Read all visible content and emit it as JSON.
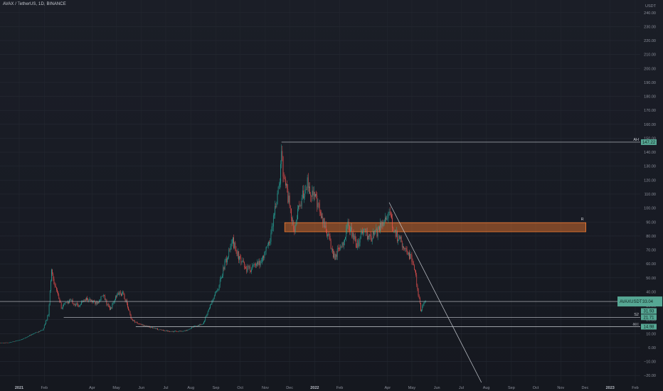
{
  "header": {
    "symbol_line": "AVAX / TetherUS, 1D, BINANCE"
  },
  "colors": {
    "up": "#26a69a",
    "down": "#ef5350",
    "line": "#c8ccd2",
    "zone_fill": "#f57c31",
    "tag_bg": "#56a794",
    "background": "#1b1e27"
  },
  "chart_data": {
    "type": "candlestick",
    "title": "AVAX / TetherUS, 1D, BINANCE",
    "y_unit": "USDT",
    "ylim": [
      -25,
      245
    ],
    "y_ticks": [
      -20,
      -10,
      0,
      10,
      20,
      30,
      40,
      50,
      60,
      70,
      80,
      90,
      100,
      110,
      120,
      130,
      140,
      150,
      160,
      170,
      180,
      190,
      200,
      210,
      220,
      230,
      240
    ],
    "x_range": [
      "2021-01-01",
      "2023-02-01"
    ],
    "x_ticks": [
      {
        "date": "2021-01-01",
        "label": "2021",
        "bold": true
      },
      {
        "date": "2021-02-01",
        "label": "Feb"
      },
      {
        "date": "2021-04-01",
        "label": "Apr"
      },
      {
        "date": "2021-05-01",
        "label": "May"
      },
      {
        "date": "2021-06-01",
        "label": "Jun"
      },
      {
        "date": "2021-07-01",
        "label": "Jul"
      },
      {
        "date": "2021-08-01",
        "label": "Aug"
      },
      {
        "date": "2021-09-01",
        "label": "Sep"
      },
      {
        "date": "2021-10-01",
        "label": "Oct"
      },
      {
        "date": "2021-11-01",
        "label": "Nov"
      },
      {
        "date": "2021-12-01",
        "label": "Dec"
      },
      {
        "date": "2022-01-01",
        "label": "2022",
        "bold": true
      },
      {
        "date": "2022-02-01",
        "label": "Feb"
      },
      {
        "date": "2022-04-01",
        "label": "Apr"
      },
      {
        "date": "2022-05-01",
        "label": "May"
      },
      {
        "date": "2022-06-01",
        "label": "Jun"
      },
      {
        "date": "2022-07-01",
        "label": "Jul"
      },
      {
        "date": "2022-08-01",
        "label": "Aug"
      },
      {
        "date": "2022-09-01",
        "label": "Sep"
      },
      {
        "date": "2022-10-01",
        "label": "Oct"
      },
      {
        "date": "2022-11-01",
        "label": "Nov"
      },
      {
        "date": "2022-12-01",
        "label": "Dec"
      },
      {
        "date": "2023-01-01",
        "label": "2023",
        "bold": true
      },
      {
        "date": "2023-02-01",
        "label": "Feb"
      }
    ],
    "price_anchors": [
      [
        "2020-12-01",
        3.2
      ],
      [
        "2020-12-20",
        3.6
      ],
      [
        "2021-01-05",
        6.0
      ],
      [
        "2021-01-20",
        10.5
      ],
      [
        "2021-01-30",
        12.5
      ],
      [
        "2021-02-06",
        24.0
      ],
      [
        "2021-02-10",
        56.0
      ],
      [
        "2021-02-14",
        45.0
      ],
      [
        "2021-02-22",
        29.0
      ],
      [
        "2021-03-05",
        34.0
      ],
      [
        "2021-03-15",
        30.0
      ],
      [
        "2021-03-25",
        35.0
      ],
      [
        "2021-04-05",
        32.0
      ],
      [
        "2021-04-15",
        37.0
      ],
      [
        "2021-04-23",
        27.0
      ],
      [
        "2021-05-03",
        39.0
      ],
      [
        "2021-05-10",
        38.0
      ],
      [
        "2021-05-20",
        20.0
      ],
      [
        "2021-05-28",
        17.0
      ],
      [
        "2021-06-10",
        15.0
      ],
      [
        "2021-06-25",
        12.5
      ],
      [
        "2021-07-10",
        11.5
      ],
      [
        "2021-07-25",
        12.0
      ],
      [
        "2021-08-05",
        15.0
      ],
      [
        "2021-08-16",
        17.0
      ],
      [
        "2021-08-25",
        30.0
      ],
      [
        "2021-09-05",
        45.0
      ],
      [
        "2021-09-12",
        60.0
      ],
      [
        "2021-09-22",
        76.0
      ],
      [
        "2021-10-01",
        62.0
      ],
      [
        "2021-10-10",
        56.0
      ],
      [
        "2021-10-25",
        60.0
      ],
      [
        "2021-11-06",
        75.0
      ],
      [
        "2021-11-13",
        100.0
      ],
      [
        "2021-11-19",
        118.0
      ],
      [
        "2021-11-21",
        140.0
      ],
      [
        "2021-11-23",
        128.0
      ],
      [
        "2021-11-28",
        112.0
      ],
      [
        "2021-12-06",
        84.0
      ],
      [
        "2021-12-12",
        98.0
      ],
      [
        "2021-12-22",
        118.0
      ],
      [
        "2022-01-01",
        108.0
      ],
      [
        "2022-01-10",
        92.0
      ],
      [
        "2022-01-18",
        80.0
      ],
      [
        "2022-01-24",
        64.0
      ],
      [
        "2022-02-02",
        72.0
      ],
      [
        "2022-02-12",
        88.0
      ],
      [
        "2022-02-22",
        72.0
      ],
      [
        "2022-03-01",
        84.0
      ],
      [
        "2022-03-10",
        78.0
      ],
      [
        "2022-03-18",
        82.0
      ],
      [
        "2022-03-28",
        92.0
      ],
      [
        "2022-04-02",
        97.0
      ],
      [
        "2022-04-10",
        82.0
      ],
      [
        "2022-04-20",
        74.0
      ],
      [
        "2022-04-30",
        64.0
      ],
      [
        "2022-05-05",
        55.0
      ],
      [
        "2022-05-09",
        38.0
      ],
      [
        "2022-05-12",
        27.0
      ],
      [
        "2022-05-15",
        31.0
      ],
      [
        "2022-05-18",
        33.0
      ]
    ],
    "annotations": {
      "resistance_zone": {
        "label": "R",
        "from": "2021-11-25",
        "to": "2022-12-02",
        "low": 83,
        "high": 89.5
      },
      "ath_line": {
        "label": "AH",
        "from": "2021-11-21",
        "price": 147.22
      },
      "current_price": {
        "label": "AVAXUSDT",
        "value": "33.04",
        "price": 33.04
      },
      "support_2": {
        "label": "S2",
        "from": "2021-02-25",
        "price": 21.71
      },
      "support_acc": {
        "label": "acc",
        "from": "2021-05-25",
        "price": 14.98
      },
      "trendline": {
        "start_date": "2022-04-03",
        "start_price": 104,
        "end_date": "2022-07-26",
        "end_price": -25
      }
    },
    "price_tags": [
      {
        "value": "147.22",
        "price": 147.22
      },
      {
        "value": "33.04",
        "price": 33.04
      },
      {
        "value": "31.93",
        "price": 26.2
      },
      {
        "value": "21.71",
        "price": 21.71
      },
      {
        "value": "14.98",
        "price": 14.98
      }
    ]
  }
}
